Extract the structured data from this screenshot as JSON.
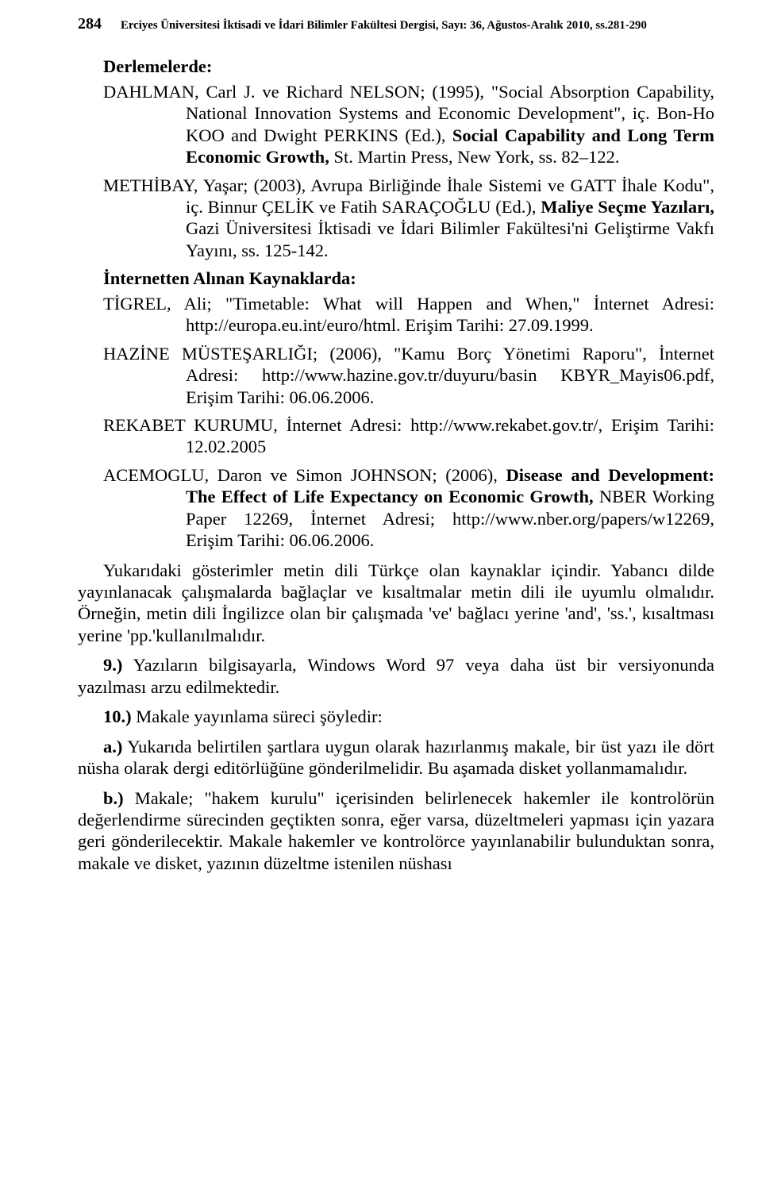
{
  "header": {
    "page_number": "284",
    "journal": "Erciyes Üniversitesi İktisadi ve İdari Bilimler Fakültesi Dergisi, Sayı: 36, Ağustos-Aralık 2010, ss.281-290"
  },
  "sections": {
    "derlemelerde": "Derlemelerde:",
    "internetten": "İnternetten Alınan Kaynaklarda:"
  },
  "refs": {
    "dahlman_lead": "DAHLMAN, Carl J. ve Richard NELSON; (1995), \"Social Absorption Capability, National Innovation Systems and Economic Development\", iç. Bon-Ho KOO and Dwight PERKINS (Ed.), ",
    "dahlman_bold": "Social Capability and Long Term Economic Growth,",
    "dahlman_tail": " St. Martin Press, New York, ss. 82–122.",
    "methibay_lead": "METHİBAY, Yaşar; (2003), Avrupa Birliğinde İhale Sistemi ve GATT İhale Kodu\", iç. Binnur ÇELİK ve Fatih SARAÇOĞLU (Ed.), ",
    "methibay_bold": "Maliye Seçme Yazıları,",
    "methibay_tail": " Gazi Üniversitesi İktisadi ve İdari Bilimler Fakültesi'ni Geliştirme Vakfı Yayını, ss. 125-142.",
    "tigrel": "TİGREL, Ali; \"Timetable: What will Happen and When,\" İnternet Adresi: http://europa.eu.int/euro/html. Erişim Tarihi: 27.09.1999.",
    "hazine": "HAZİNE MÜSTEŞARLIĞI; (2006), \"Kamu Borç Yönetimi Raporu\", İnternet Adresi: http://www.hazine.gov.tr/duyuru/basin KBYR_Mayis06.pdf, Erişim Tarihi: 06.06.2006.",
    "rekabet": "REKABET KURUMU, İnternet Adresi: http://www.rekabet.gov.tr/, Erişim Tarihi: 12.02.2005",
    "acemoglu_lead": "ACEMOGLU, Daron ve Simon JOHNSON; (2006), ",
    "acemoglu_bold": "Disease and Development: The Effect of Life Expectancy on Economic Growth,",
    "acemoglu_tail": " NBER Working Paper 12269, İnternet Adresi; http://www.nber.org/papers/w12269, Erişim Tarihi: 06.06.2006."
  },
  "body": {
    "p1": "Yukarıdaki gösterimler metin dili Türkçe olan kaynaklar içindir. Yabancı dilde yayınlanacak çalışmalarda bağlaçlar ve kısaltmalar metin dili ile uyumlu olmalıdır. Örneğin, metin dili İngilizce olan bir çalışmada 've' bağlacı yerine 'and', 'ss.', kısaltması yerine 'pp.'kullanılmalıdır.",
    "p2_bold": "9.)",
    "p2_tail": " Yazıların bilgisayarla, Windows Word 97 veya daha üst bir versiyonunda yazılması arzu edilmektedir.",
    "p3_bold": "10.)",
    "p3_tail": " Makale yayınlama süreci şöyledir:",
    "p4_bold": "a.)",
    "p4_tail": " Yukarıda belirtilen şartlara uygun olarak hazırlanmış makale, bir üst yazı ile dört nüsha olarak dergi editörlüğüne gönderilmelidir. Bu aşamada disket yollanmamalıdır.",
    "p5_bold": "b.)",
    "p5_tail": " Makale; \"hakem kurulu\" içerisinden belirlenecek hakemler ile kontrolörün değerlendirme sürecinden geçtikten sonra, eğer varsa, düzeltmeleri yapması için yazara geri gönderilecektir. Makale hakemler ve kontrolörce yayınlanabilir bulunduktan sonra, makale ve disket, yazının düzeltme istenilen nüshası"
  }
}
